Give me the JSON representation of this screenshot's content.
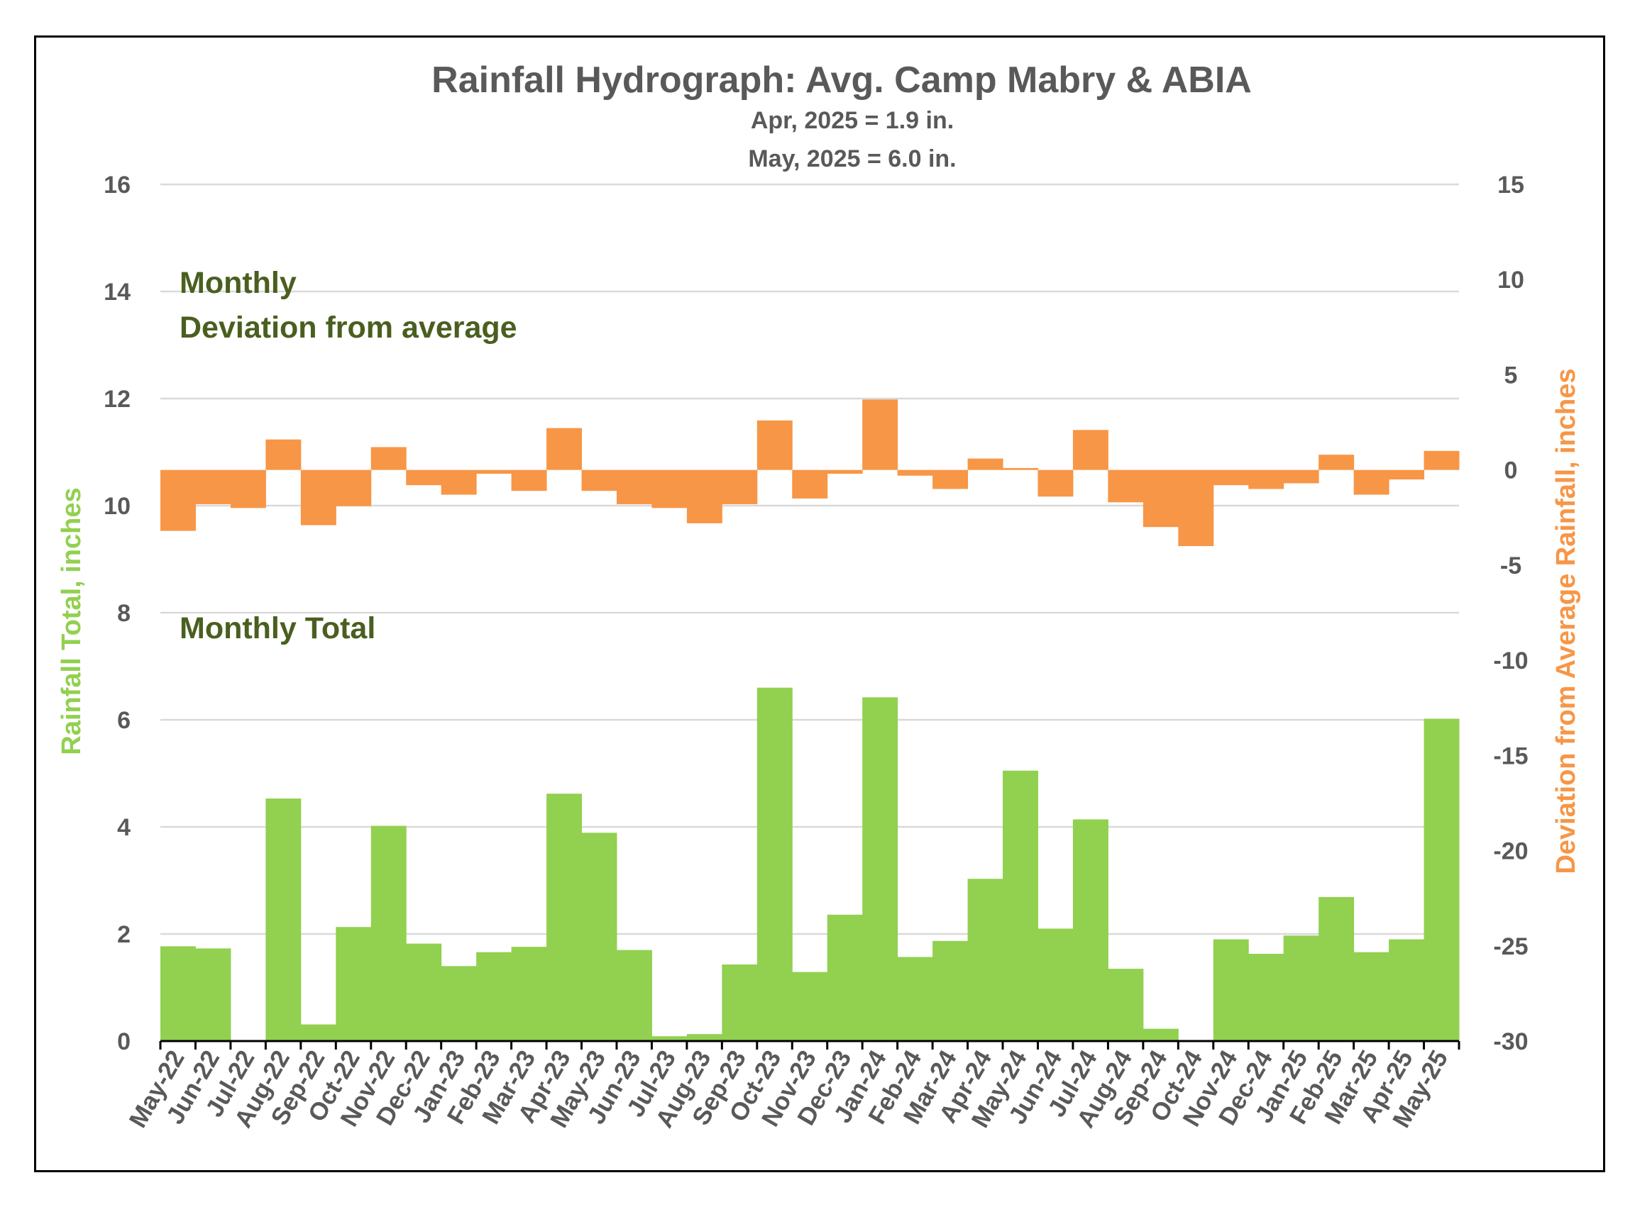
{
  "chart_data": {
    "type": "bar",
    "title": "Rainfall Hydrograph: Avg. Camp Mabry & ABIA",
    "subtitle_lines": [
      "Apr, 2025 = 1.9 in.",
      "May, 2025 = 6.0 in."
    ],
    "ylabel_left": "Rainfall Total, inches",
    "ylabel_right": "Deviation from Average Rainfall, inches",
    "ylim_left": [
      0,
      16
    ],
    "yticks_left": [
      "0",
      "2",
      "4",
      "6",
      "8",
      "10",
      "12",
      "14",
      "16"
    ],
    "ylim_right": [
      -30,
      15
    ],
    "yticks_right": [
      "-30",
      "-25",
      "-20",
      "-15",
      "-10",
      "-5",
      "0",
      "5",
      "10",
      "15"
    ],
    "grid": true,
    "annotations": {
      "deviation_label_1": "Monthly",
      "deviation_label_2": "Deviation from average",
      "total_label": "Monthly Total"
    },
    "categories": [
      "May-22",
      "Jun-22",
      "Jul-22",
      "Aug-22",
      "Sep-22",
      "Oct-22",
      "Nov-22",
      "Dec-22",
      "Jan-23",
      "Feb-23",
      "Mar-23",
      "Apr-23",
      "May-23",
      "Jun-23",
      "Jul-23",
      "Aug-23",
      "Sep-23",
      "Oct-23",
      "Nov-23",
      "Dec-23",
      "Jan-24",
      "Feb-24",
      "Mar-24",
      "Apr-24",
      "May-24",
      "Jun-24",
      "Jul-24",
      "Aug-24",
      "Sep-24",
      "Oct-24",
      "Nov-24",
      "Dec-24",
      "Jan-25",
      "Feb-25",
      "Mar-25",
      "Apr-25",
      "May-25"
    ],
    "series": [
      {
        "axis": "left",
        "color": "#92d050",
        "values": [
          1.77,
          1.73,
          0,
          4.53,
          0.31,
          2.13,
          4.02,
          1.82,
          1.4,
          1.66,
          1.76,
          4.62,
          3.89,
          1.7,
          0.09,
          0.13,
          1.43,
          6.6,
          1.29,
          2.36,
          6.42,
          1.57,
          1.87,
          3.03,
          5.05,
          2.1,
          4.14,
          1.35,
          0.23,
          0,
          1.9,
          1.63,
          1.97,
          2.69,
          1.66,
          1.9,
          6.02
        ]
      },
      {
        "axis": "right",
        "color": "#f79646",
        "values": [
          -3.2,
          -1.8,
          -2.0,
          1.6,
          -2.9,
          -1.9,
          1.2,
          -0.8,
          -1.3,
          -0.2,
          -1.1,
          2.2,
          -1.1,
          -1.8,
          -2.0,
          -2.8,
          -1.8,
          2.6,
          -1.5,
          -0.2,
          3.7,
          -0.3,
          -1.0,
          0.6,
          0.1,
          -1.4,
          2.1,
          -1.7,
          -3.0,
          -4.0,
          -0.8,
          -1.0,
          -0.7,
          0.8,
          -1.3,
          -0.5,
          1.0
        ]
      }
    ]
  }
}
